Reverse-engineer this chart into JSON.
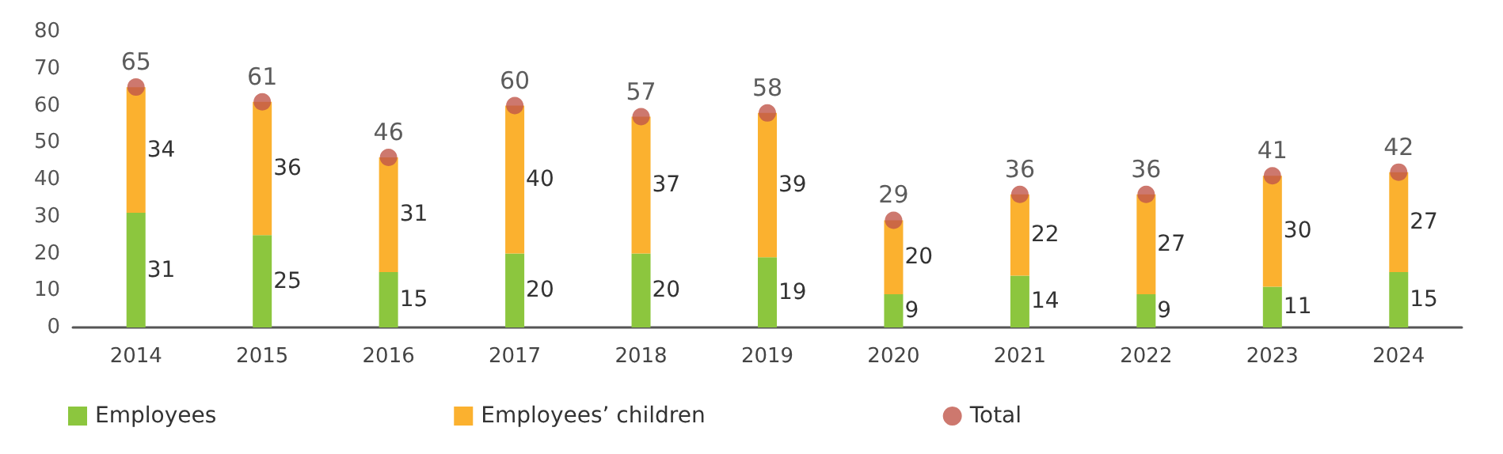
{
  "chart_data": {
    "type": "bar",
    "stacked": true,
    "categories": [
      "2014",
      "2015",
      "2016",
      "2017",
      "2018",
      "2019",
      "2020",
      "2021",
      "2022",
      "2023",
      "2024"
    ],
    "series": [
      {
        "name": "Employees",
        "color": "#8cc63e",
        "values": [
          31,
          25,
          15,
          20,
          20,
          19,
          9,
          14,
          9,
          11,
          15
        ]
      },
      {
        "name": "Employees’ children",
        "color": "#fbb12f",
        "values": [
          34,
          36,
          31,
          40,
          37,
          39,
          20,
          22,
          27,
          30,
          27
        ]
      },
      {
        "name": "Total",
        "type": "scatter",
        "color": "#c0564a",
        "values": [
          65,
          61,
          46,
          60,
          57,
          58,
          29,
          36,
          36,
          41,
          42
        ]
      }
    ],
    "ylim": [
      0,
      80
    ],
    "yticks": [
      0,
      10,
      20,
      30,
      40,
      50,
      60,
      70,
      80
    ],
    "grid": false,
    "legend": "bottom",
    "data_labels": true,
    "marker": "circle"
  }
}
